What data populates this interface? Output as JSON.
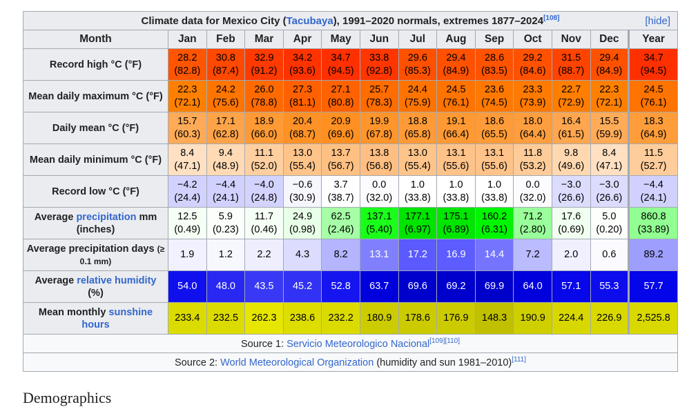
{
  "table": {
    "caption_prefix": "Climate data for Mexico City (",
    "caption_link": "Tacubaya",
    "caption_suffix": "), 1991–2020 normals, extremes 1877–2024",
    "caption_ref": "[108]",
    "hide_link": "[hide]",
    "header": [
      "Month",
      "Jan",
      "Feb",
      "Mar",
      "Apr",
      "May",
      "Jun",
      "Jul",
      "Aug",
      "Sep",
      "Oct",
      "Nov",
      "Dec",
      "Year"
    ],
    "rows": [
      {
        "label": "Record high °C (°F)",
        "cells": [
          {
            "c": "28.2",
            "f": "(82.8)",
            "bg": "#ff5500"
          },
          {
            "c": "30.8",
            "f": "(87.4)",
            "bg": "#ff4800"
          },
          {
            "c": "32.9",
            "f": "(91.2)",
            "bg": "#ff3a00"
          },
          {
            "c": "34.2",
            "f": "(93.6)",
            "bg": "#ff3300"
          },
          {
            "c": "34.7",
            "f": "(94.5)",
            "bg": "#ff3000"
          },
          {
            "c": "33.8",
            "f": "(92.8)",
            "bg": "#ff3600"
          },
          {
            "c": "29.6",
            "f": "(85.3)",
            "bg": "#ff5000"
          },
          {
            "c": "29.4",
            "f": "(84.9)",
            "bg": "#ff5100"
          },
          {
            "c": "28.6",
            "f": "(83.5)",
            "bg": "#ff5300"
          },
          {
            "c": "29.2",
            "f": "(84.6)",
            "bg": "#ff5100"
          },
          {
            "c": "31.5",
            "f": "(88.7)",
            "bg": "#ff4300"
          },
          {
            "c": "29.4",
            "f": "(84.9)",
            "bg": "#ff5100"
          },
          {
            "c": "34.7",
            "f": "(94.5)",
            "bg": "#ff3000"
          }
        ]
      },
      {
        "label": "Mean daily maximum °C (°F)",
        "cells": [
          {
            "c": "22.3",
            "f": "(72.1)",
            "bg": "#ff8000"
          },
          {
            "c": "24.2",
            "f": "(75.6)",
            "bg": "#ff7500"
          },
          {
            "c": "26.0",
            "f": "(78.8)",
            "bg": "#ff6a00"
          },
          {
            "c": "27.3",
            "f": "(81.1)",
            "bg": "#ff6100"
          },
          {
            "c": "27.1",
            "f": "(80.8)",
            "bg": "#ff6200"
          },
          {
            "c": "25.7",
            "f": "(78.3)",
            "bg": "#ff6c00"
          },
          {
            "c": "24.4",
            "f": "(75.9)",
            "bg": "#ff7400"
          },
          {
            "c": "24.5",
            "f": "(76.1)",
            "bg": "#ff7300"
          },
          {
            "c": "23.6",
            "f": "(74.5)",
            "bg": "#ff7900"
          },
          {
            "c": "23.3",
            "f": "(73.9)",
            "bg": "#ff7a00"
          },
          {
            "c": "22.7",
            "f": "(72.9)",
            "bg": "#ff7e00"
          },
          {
            "c": "22.3",
            "f": "(72.1)",
            "bg": "#ff8000"
          },
          {
            "c": "24.5",
            "f": "(76.1)",
            "bg": "#ff7300"
          }
        ]
      },
      {
        "label": "Daily mean °C (°F)",
        "cells": [
          {
            "c": "15.7",
            "f": "(60.3)",
            "bg": "#ffaa56"
          },
          {
            "c": "17.1",
            "f": "(62.8)",
            "bg": "#ffa348"
          },
          {
            "c": "18.9",
            "f": "(66.0)",
            "bg": "#ff9a35"
          },
          {
            "c": "20.4",
            "f": "(68.7)",
            "bg": "#ff9226"
          },
          {
            "c": "20.9",
            "f": "(69.6)",
            "bg": "#ff9021"
          },
          {
            "c": "19.9",
            "f": "(67.8)",
            "bg": "#ff952b"
          },
          {
            "c": "18.8",
            "f": "(65.8)",
            "bg": "#ff9a36"
          },
          {
            "c": "19.1",
            "f": "(66.4)",
            "bg": "#ff9933"
          },
          {
            "c": "18.6",
            "f": "(65.5)",
            "bg": "#ff9b38"
          },
          {
            "c": "18.0",
            "f": "(64.4)",
            "bg": "#ff9e3e"
          },
          {
            "c": "16.4",
            "f": "(61.5)",
            "bg": "#ffa64f"
          },
          {
            "c": "15.5",
            "f": "(59.9)",
            "bg": "#ffab58"
          },
          {
            "c": "18.3",
            "f": "(64.9)",
            "bg": "#ff9d3b"
          }
        ]
      },
      {
        "label": "Mean daily minimum °C (°F)",
        "cells": [
          {
            "c": "8.4",
            "f": "(47.1)",
            "bg": "#ffe0c2"
          },
          {
            "c": "9.4",
            "f": "(48.9)",
            "bg": "#ffdab5"
          },
          {
            "c": "11.1",
            "f": "(52.0)",
            "bg": "#ffcfa0"
          },
          {
            "c": "13.0",
            "f": "(55.4)",
            "bg": "#ffc48a"
          },
          {
            "c": "13.7",
            "f": "(56.7)",
            "bg": "#ffc083"
          },
          {
            "c": "13.8",
            "f": "(56.8)",
            "bg": "#ffbf82"
          },
          {
            "c": "13.0",
            "f": "(55.4)",
            "bg": "#ffc48a"
          },
          {
            "c": "13.1",
            "f": "(55.6)",
            "bg": "#ffc389"
          },
          {
            "c": "13.1",
            "f": "(55.6)",
            "bg": "#ffc389"
          },
          {
            "c": "11.8",
            "f": "(53.2)",
            "bg": "#ffcb98"
          },
          {
            "c": "9.8",
            "f": "(49.6)",
            "bg": "#ffd8b0"
          },
          {
            "c": "8.4",
            "f": "(47.1)",
            "bg": "#ffe0c2"
          },
          {
            "c": "11.5",
            "f": "(52.7)",
            "bg": "#ffcd9b"
          }
        ]
      },
      {
        "label": "Record low °C (°F)",
        "cells": [
          {
            "c": "−4.2",
            "f": "(24.4)",
            "bg": "#d2d2ff"
          },
          {
            "c": "−4.4",
            "f": "(24.1)",
            "bg": "#d1d1ff"
          },
          {
            "c": "−4.0",
            "f": "(24.8)",
            "bg": "#d3d3ff"
          },
          {
            "c": "−0.6",
            "f": "(30.9)",
            "bg": "#f6f6ff"
          },
          {
            "c": "3.7",
            "f": "(38.7)",
            "bg": "#ffffff"
          },
          {
            "c": "0.0",
            "f": "(32.0)",
            "bg": "#fcfcff"
          },
          {
            "c": "1.0",
            "f": "(33.8)",
            "bg": "#ffffff"
          },
          {
            "c": "1.0",
            "f": "(33.8)",
            "bg": "#ffffff"
          },
          {
            "c": "1.0",
            "f": "(33.8)",
            "bg": "#ffffff"
          },
          {
            "c": "0.0",
            "f": "(32.0)",
            "bg": "#fcfcff"
          },
          {
            "c": "−3.0",
            "f": "(26.6)",
            "bg": "#dcdcff"
          },
          {
            "c": "−3.0",
            "f": "(26.6)",
            "bg": "#dcdcff"
          },
          {
            "c": "−4.4",
            "f": "(24.1)",
            "bg": "#d1d1ff"
          }
        ]
      },
      {
        "label_pre": "Average ",
        "label_link": "precipitation",
        "label_post": " mm (inches)",
        "cells": [
          {
            "c": "12.5",
            "f": "(0.49)",
            "bg": "#f5fff5"
          },
          {
            "c": "5.9",
            "f": "(0.23)",
            "bg": "#fbfffb"
          },
          {
            "c": "11.7",
            "f": "(0.46)",
            "bg": "#f6fff6"
          },
          {
            "c": "24.9",
            "f": "(0.98)",
            "bg": "#e8ffe8"
          },
          {
            "c": "62.5",
            "f": "(2.46)",
            "bg": "#a6ffa6"
          },
          {
            "c": "137.1",
            "f": "(5.40)",
            "bg": "#1aff1a"
          },
          {
            "c": "177.1",
            "f": "(6.97)",
            "bg": "#00e400"
          },
          {
            "c": "175.1",
            "f": "(6.89)",
            "bg": "#00e600"
          },
          {
            "c": "160.2",
            "f": "(6.31)",
            "bg": "#00f500"
          },
          {
            "c": "71.2",
            "f": "(2.80)",
            "bg": "#9aff9a"
          },
          {
            "c": "17.6",
            "f": "(0.69)",
            "bg": "#f0fff0"
          },
          {
            "c": "5.0",
            "f": "(0.20)",
            "bg": "#fcfffc"
          },
          {
            "c": "860.8",
            "f": "(33.89)",
            "bg": "#91ff91"
          }
        ]
      },
      {
        "label_main": "Average precipitation days",
        "label_small": "(≥ 0.1 mm)",
        "cells": [
          {
            "c": "1.9",
            "bg": "#f1f1ff"
          },
          {
            "c": "1.2",
            "bg": "#f7f7ff"
          },
          {
            "c": "2.2",
            "bg": "#eeeeff"
          },
          {
            "c": "4.3",
            "bg": "#dcdcff"
          },
          {
            "c": "8.2",
            "bg": "#b4b4ff"
          },
          {
            "c": "13.1",
            "bg": "#8080ff"
          },
          {
            "c": "17.2",
            "bg": "#5a5aff"
          },
          {
            "c": "16.9",
            "bg": "#5c5cff"
          },
          {
            "c": "14.4",
            "bg": "#7474ff"
          },
          {
            "c": "7.2",
            "bg": "#bbbbff"
          },
          {
            "c": "2.0",
            "bg": "#f0f0ff"
          },
          {
            "c": "0.6",
            "bg": "#fbfbff"
          },
          {
            "c": "89.2",
            "bg": "#9e9eff"
          }
        ]
      },
      {
        "label_pre": "Average ",
        "label_link": "relative humidity",
        "label_post": " (%)",
        "cells": [
          {
            "c": "54.0",
            "bg": "#1010ef"
          },
          {
            "c": "48.0",
            "bg": "#2828f2"
          },
          {
            "c": "43.5",
            "bg": "#3838f5"
          },
          {
            "c": "45.2",
            "bg": "#3232f4"
          },
          {
            "c": "52.8",
            "bg": "#1515ef"
          },
          {
            "c": "63.7",
            "bg": "#0000dc"
          },
          {
            "c": "69.6",
            "bg": "#0000cc"
          },
          {
            "c": "69.2",
            "bg": "#0000cd"
          },
          {
            "c": "69.9",
            "bg": "#0000cb"
          },
          {
            "c": "64.0",
            "bg": "#0000dc"
          },
          {
            "c": "57.1",
            "bg": "#0707ea"
          },
          {
            "c": "55.3",
            "bg": "#0c0cec"
          },
          {
            "c": "57.7",
            "bg": "#0505e9"
          }
        ]
      },
      {
        "label_pre": "Mean monthly ",
        "label_link": "sunshine hours",
        "label_post": "",
        "cells": [
          {
            "c": "233.4",
            "bg": "#dbdb00"
          },
          {
            "c": "232.5",
            "bg": "#dbdb00"
          },
          {
            "c": "262.3",
            "bg": "#e6e600"
          },
          {
            "c": "238.6",
            "bg": "#dddd00"
          },
          {
            "c": "232.2",
            "bg": "#dbdb00"
          },
          {
            "c": "180.9",
            "bg": "#cccc00"
          },
          {
            "c": "178.6",
            "bg": "#cbcb00"
          },
          {
            "c": "176.9",
            "bg": "#cbcb00"
          },
          {
            "c": "148.3",
            "bg": "#c0c000"
          },
          {
            "c": "190.9",
            "bg": "#cfcf00"
          },
          {
            "c": "224.4",
            "bg": "#d8d800"
          },
          {
            "c": "226.9",
            "bg": "#d9d900"
          },
          {
            "c": "2,525.8",
            "bg": "#d9d900"
          }
        ]
      }
    ],
    "source1_prefix": "Source 1: ",
    "source1_link": "Servicio Meteorologico Nacional",
    "source1_ref": "[109][110]",
    "source2_prefix": "Source 2: ",
    "source2_link": "World Meteorological Organization",
    "source2_suffix": " (humidity and sun 1981–2010)",
    "source2_ref": "[111]"
  },
  "below_text": "Demographics"
}
